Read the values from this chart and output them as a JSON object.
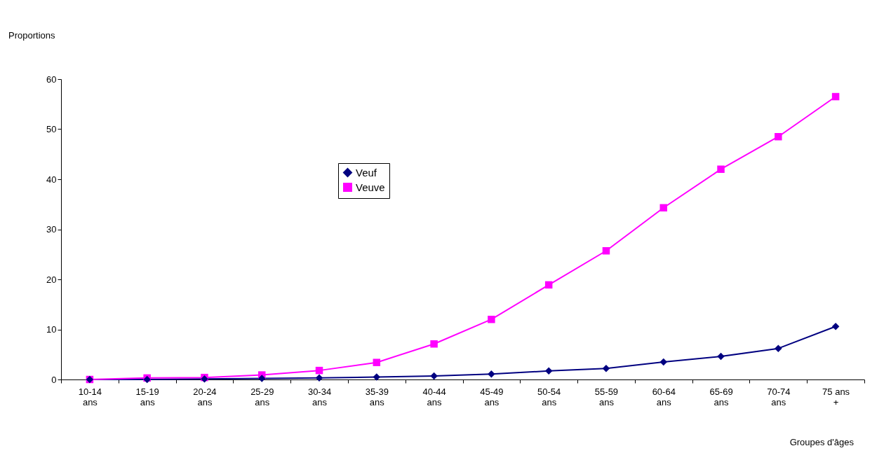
{
  "chart_data": {
    "type": "line",
    "ylabel": "Proportions",
    "xlabel": "Groupes d'âges",
    "categories": [
      "10-14\nans",
      "15-19\nans",
      "20-24\nans",
      "25-29\nans",
      "30-34\nans",
      "35-39\nans",
      "40-44\nans",
      "45-49\nans",
      "50-54\nans",
      "55-59\nans",
      "60-64\nans",
      "65-69\nans",
      "70-74\nans",
      "75 ans\n+"
    ],
    "series": [
      {
        "name": "Veuf",
        "color": "#000080",
        "marker": "diamond",
        "values": [
          0,
          0,
          0.1,
          0.2,
          0.3,
          0.5,
          0.7,
          1.1,
          1.7,
          2.2,
          3.5,
          4.6,
          6.2,
          10.6
        ]
      },
      {
        "name": "Veuve",
        "color": "#ff00ff",
        "marker": "square",
        "values": [
          0,
          0.3,
          0.4,
          0.9,
          1.8,
          3.4,
          7.1,
          12.0,
          18.9,
          25.7,
          34.3,
          42.0,
          48.5,
          56.5
        ]
      }
    ],
    "ylim": [
      0,
      60
    ],
    "yticks": [
      0,
      10,
      20,
      30,
      40,
      50,
      60
    ],
    "grid": false,
    "legend": "top left",
    "line_style": "solid"
  }
}
